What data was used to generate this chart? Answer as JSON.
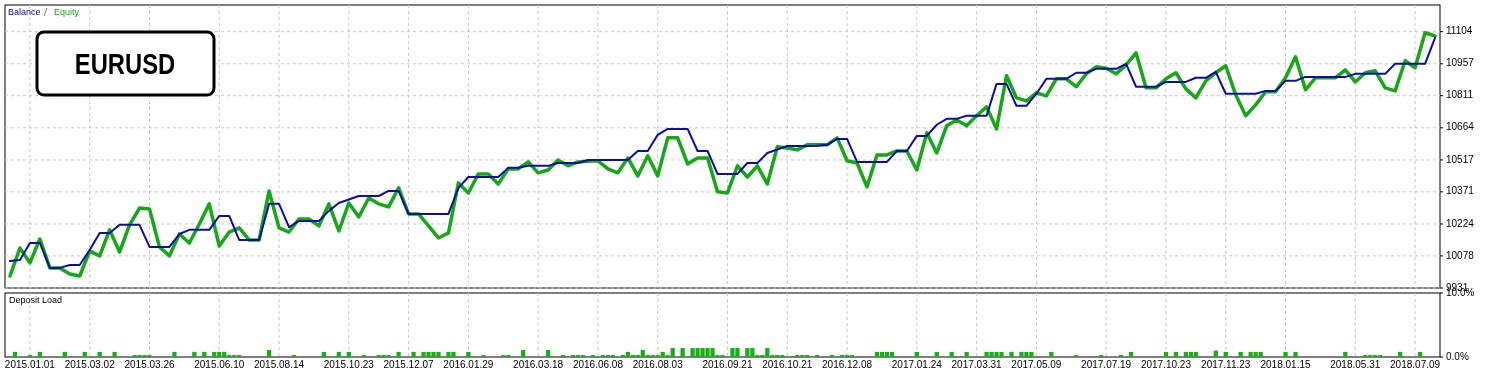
{
  "chart_data": [
    {
      "type": "line",
      "legend": "top left",
      "grid": true,
      "tick_labels": "y",
      "annotations": [
        "EURUSD"
      ],
      "ylim": [
        9931,
        11226
      ],
      "yticks": [
        9931,
        10078,
        10224,
        10371,
        10517,
        10664,
        10811,
        10957,
        11104
      ],
      "categories": [
        null,
        null,
        "2015.01.01",
        null,
        null,
        null,
        null,
        null,
        "2015.03.02",
        null,
        null,
        null,
        null,
        null,
        "2015.03.26",
        null,
        null,
        null,
        null,
        null,
        null,
        "2015.06.10",
        null,
        null,
        null,
        null,
        null,
        "2015.08.14",
        null,
        null,
        null,
        null,
        null,
        null,
        "2015.10.23",
        null,
        null,
        null,
        null,
        null,
        "2015.12.07",
        null,
        null,
        null,
        null,
        null,
        "2016.01.29",
        null,
        null,
        null,
        null,
        null,
        null,
        "2016.03.18",
        null,
        null,
        null,
        null,
        null,
        "2016.06.08",
        null,
        null,
        null,
        null,
        null,
        "2016.08.03",
        null,
        null,
        null,
        null,
        null,
        null,
        "2016.09.21",
        null,
        null,
        null,
        null,
        null,
        "2016.10.21",
        null,
        null,
        null,
        null,
        null,
        "2016.12.08",
        null,
        null,
        null,
        null,
        null,
        null,
        "2017.01.24",
        null,
        null,
        null,
        null,
        null,
        "2017.03.31",
        null,
        null,
        null,
        null,
        null,
        "2017.05.09",
        null,
        null,
        null,
        null,
        null,
        null,
        "2017.07.19",
        null,
        null,
        null,
        null,
        null,
        "2017.10.23",
        null,
        null,
        null,
        null,
        null,
        "2017.11.23",
        null,
        null,
        null,
        null,
        null,
        "2018.01.15",
        null,
        null,
        null,
        null,
        null,
        null,
        "2018.05.31",
        null,
        null,
        null,
        null,
        null,
        "2018.07.09",
        null,
        null
      ],
      "series": [
        {
          "name": "Balance",
          "color": "#0c0ca8",
          "values": [
            10055,
            10059,
            10137,
            10137,
            10023,
            10023,
            10036,
            10036,
            10105,
            10183,
            10183,
            10220,
            10220,
            10220,
            10119,
            10119,
            10119,
            10178,
            10197,
            10197,
            10197,
            10261,
            10261,
            10151,
            10151,
            10151,
            10316,
            10316,
            10210,
            10238,
            10238,
            10238,
            10284,
            10320,
            10336,
            10352,
            10352,
            10352,
            10375,
            10375,
            10270,
            10270,
            10270,
            10270,
            10270,
            10389,
            10439,
            10439,
            10439,
            10439,
            10481,
            10481,
            10490,
            10490,
            10490,
            10503,
            10503,
            10503,
            10517,
            10517,
            10517,
            10517,
            10517,
            10558,
            10558,
            10632,
            10659,
            10659,
            10659,
            10558,
            10558,
            10453,
            10453,
            10453,
            10503,
            10503,
            10549,
            10565,
            10581,
            10581,
            10581,
            10582,
            10586,
            10613,
            10613,
            10508,
            10508,
            10508,
            10508,
            10558,
            10558,
            10627,
            10627,
            10678,
            10705,
            10705,
            10719,
            10719,
            10719,
            10865,
            10865,
            10765,
            10765,
            10820,
            10888,
            10888,
            10888,
            10916,
            10916,
            10934,
            10934,
            10934,
            10957,
            10852,
            10852,
            10852,
            10874,
            10874,
            10874,
            10893,
            10893,
            10920,
            10820,
            10820,
            10820,
            10820,
            10833,
            10833,
            10879,
            10879,
            10897,
            10897,
            10897,
            10897,
            10897,
            10911,
            10911,
            10911,
            10911,
            10957,
            10957,
            10957,
            10957,
            11076
          ]
        },
        {
          "name": "Equity",
          "color": "#14a814",
          "values": [
            9986,
            10114,
            10046,
            10155,
            10023,
            10023,
            9995,
            9986,
            10100,
            10078,
            10197,
            10096,
            10220,
            10297,
            10293,
            10119,
            10078,
            10178,
            10137,
            10224,
            10316,
            10123,
            10187,
            10206,
            10151,
            10151,
            10375,
            10206,
            10187,
            10247,
            10247,
            10215,
            10316,
            10192,
            10320,
            10256,
            10343,
            10316,
            10302,
            10389,
            10270,
            10270,
            10215,
            10160,
            10183,
            10412,
            10366,
            10453,
            10453,
            10407,
            10476,
            10476,
            10508,
            10458,
            10471,
            10517,
            10490,
            10508,
            10511,
            10513,
            10476,
            10458,
            10526,
            10444,
            10536,
            10444,
            10618,
            10618,
            10499,
            10526,
            10526,
            10371,
            10366,
            10490,
            10439,
            10490,
            10407,
            10577,
            10572,
            10563,
            10586,
            10586,
            10586,
            10618,
            10513,
            10503,
            10394,
            10540,
            10540,
            10558,
            10558,
            10471,
            10641,
            10549,
            10673,
            10700,
            10673,
            10719,
            10760,
            10659,
            10902,
            10801,
            10787,
            10824,
            10810,
            10888,
            10888,
            10852,
            10911,
            10943,
            10937,
            10911,
            10952,
            11007,
            10847,
            10847,
            10888,
            10916,
            10842,
            10801,
            10879,
            10916,
            10948,
            10815,
            10719,
            10769,
            10829,
            10829,
            10893,
            10989,
            10838,
            10893,
            10893,
            10893,
            10929,
            10874,
            10916,
            10925,
            10847,
            10833,
            10971,
            10939,
            11099,
            11085
          ]
        }
      ]
    },
    {
      "type": "bar",
      "title": "Deposit Load",
      "grid": "x",
      "color": "#14b014",
      "ylim": [
        0,
        10
      ],
      "yticks": [
        {
          "value": 0,
          "label": "0.0%"
        },
        {
          "value": 10,
          "label": "10.0%"
        }
      ],
      "categories": [
        null,
        null,
        null,
        null,
        null,
        "2015.01.01",
        null,
        null,
        null,
        null,
        null,
        null,
        null,
        null,
        null,
        null,
        null,
        "2015.03.02",
        null,
        null,
        null,
        null,
        null,
        null,
        null,
        null,
        null,
        null,
        null,
        "2015.03.26",
        null,
        null,
        null,
        null,
        null,
        null,
        null,
        null,
        null,
        null,
        null,
        null,
        null,
        "2015.06.10",
        null,
        null,
        null,
        null,
        null,
        null,
        null,
        null,
        null,
        null,
        null,
        "2015.08.14",
        null,
        null,
        null,
        null,
        null,
        null,
        null,
        null,
        null,
        null,
        null,
        null,
        null,
        "2015.10.23",
        null,
        null,
        null,
        null,
        null,
        null,
        null,
        null,
        null,
        null,
        null,
        "2015.12.07",
        null,
        null,
        null,
        null,
        null,
        null,
        null,
        null,
        null,
        null,
        null,
        "2016.01.29",
        null,
        null,
        null,
        null,
        null,
        null,
        null,
        null,
        null,
        null,
        null,
        null,
        null,
        "2016.03.18",
        null,
        null,
        null,
        null,
        null,
        null,
        null,
        null,
        null,
        null,
        null,
        "2016.06.08",
        null,
        null,
        null,
        null,
        null,
        null,
        null,
        null,
        null,
        null,
        null,
        "2016.08.03",
        null,
        null,
        null,
        null,
        null,
        null,
        null,
        null,
        null,
        null,
        null,
        null,
        null,
        "2016.09.21",
        null,
        null,
        null,
        null,
        null,
        null,
        null,
        null,
        null,
        null,
        null,
        "2016.10.21",
        null,
        null,
        null,
        null,
        null,
        null,
        null,
        null,
        null,
        null,
        null,
        "2016.12.08",
        null,
        null,
        null,
        null,
        null,
        null,
        null,
        null,
        null,
        null,
        null,
        null,
        null,
        "2017.01.24",
        null,
        null,
        null,
        null,
        null,
        null,
        null,
        null,
        null,
        null,
        null,
        "2017.03.31",
        null,
        null,
        null,
        null,
        null,
        null,
        null,
        null,
        null,
        null,
        null,
        "2017.05.09",
        null,
        null,
        null,
        null,
        null,
        null,
        null,
        null,
        null,
        null,
        null,
        null,
        null,
        "2017.07.19",
        null,
        null,
        null,
        null,
        null,
        null,
        null,
        null,
        null,
        null,
        null,
        "2017.10.23",
        null,
        null,
        null,
        null,
        null,
        null,
        null,
        null,
        null,
        null,
        null,
        "2017.11.23",
        null,
        null,
        null,
        null,
        null,
        null,
        null,
        null,
        null,
        null,
        null,
        "2018.01.15",
        null,
        null,
        null,
        null,
        null,
        null,
        null,
        null,
        null,
        null,
        null,
        null,
        null,
        "2018.05.31",
        null,
        null,
        null,
        null,
        null,
        null,
        null,
        null,
        null,
        null,
        null,
        "2018.07.09",
        null,
        null,
        null,
        null
      ],
      "values": [
        null,
        null,
        0.8,
        null,
        null,
        0.3,
        null,
        0.8,
        null,
        null,
        null,
        null,
        0.8,
        null,
        null,
        null,
        0.8,
        null,
        null,
        0.8,
        null,
        null,
        0.8,
        null,
        null,
        null,
        0.3,
        0.3,
        0.3,
        0.3,
        null,
        null,
        null,
        null,
        0.8,
        null,
        null,
        null,
        0.8,
        null,
        0.8,
        null,
        0.8,
        0.8,
        0.8,
        0.3,
        0.3,
        0.3,
        null,
        null,
        null,
        null,
        null,
        1.1,
        null,
        null,
        null,
        null,
        0.3,
        null,
        null,
        null,
        null,
        null,
        0.8,
        null,
        null,
        0.8,
        null,
        0.8,
        null,
        null,
        0.3,
        null,
        null,
        0.3,
        0.3,
        0.3,
        null,
        0.8,
        null,
        null,
        0.8,
        null,
        0.8,
        0.8,
        0.8,
        0.8,
        null,
        0.8,
        0.8,
        null,
        null,
        0.8,
        null,
        null,
        0.3,
        null,
        null,
        null,
        0.3,
        0.3,
        null,
        null,
        1.1,
        null,
        null,
        null,
        null,
        1.1,
        null,
        null,
        0.3,
        null,
        0.3,
        0.3,
        0.3,
        null,
        0.3,
        null,
        0.3,
        0.3,
        0.3,
        null,
        0.3,
        0.8,
        0.3,
        0.3,
        1.1,
        0.3,
        0.3,
        0.3,
        0.8,
        0.3,
        1.4,
        null,
        1.4,
        null,
        1.4,
        1.4,
        1.4,
        1.4,
        1.4,
        0.3,
        0.3,
        null,
        1.4,
        1.4,
        null,
        1.4,
        1.4,
        0.3,
        0.3,
        1.4,
        0.3,
        0.3,
        0.3,
        null,
        null,
        0.3,
        0.3,
        0.3,
        null,
        0.3,
        null,
        null,
        0.3,
        null,
        0.3,
        0.3,
        0.3,
        null,
        null,
        null,
        null,
        0.8,
        0.8,
        0.8,
        0.8,
        null,
        null,
        null,
        null,
        0.8,
        null,
        null,
        null,
        0.8,
        null,
        null,
        0.8,
        null,
        null,
        0.8,
        null,
        null,
        null,
        0.8,
        0.8,
        0.8,
        0.8,
        null,
        0.8,
        null,
        0.8,
        0.8,
        0.8,
        null,
        null,
        null,
        0.8,
        null,
        null,
        null,
        null,
        0.3,
        null,
        null,
        null,
        null,
        0.3,
        null,
        null,
        null,
        0.3,
        null,
        0.8,
        null,
        null,
        null,
        null,
        null,
        null,
        0.8,
        null,
        0.8,
        null,
        0.8,
        0.8,
        0.8,
        null,
        null,
        null,
        1.0,
        null,
        0.8,
        null,
        null,
        0.8,
        null,
        0.8,
        0.8,
        0.8,
        null,
        null,
        null,
        null,
        0.8,
        null,
        0.8,
        null,
        null,
        null,
        null,
        null,
        null,
        null,
        null,
        null,
        0.8,
        null,
        null,
        null,
        0.3,
        0.3,
        0.3,
        0.3,
        null,
        null,
        null,
        0.8,
        null,
        null,
        null,
        0.8,
        null,
        null,
        null
      ]
    }
  ]
}
